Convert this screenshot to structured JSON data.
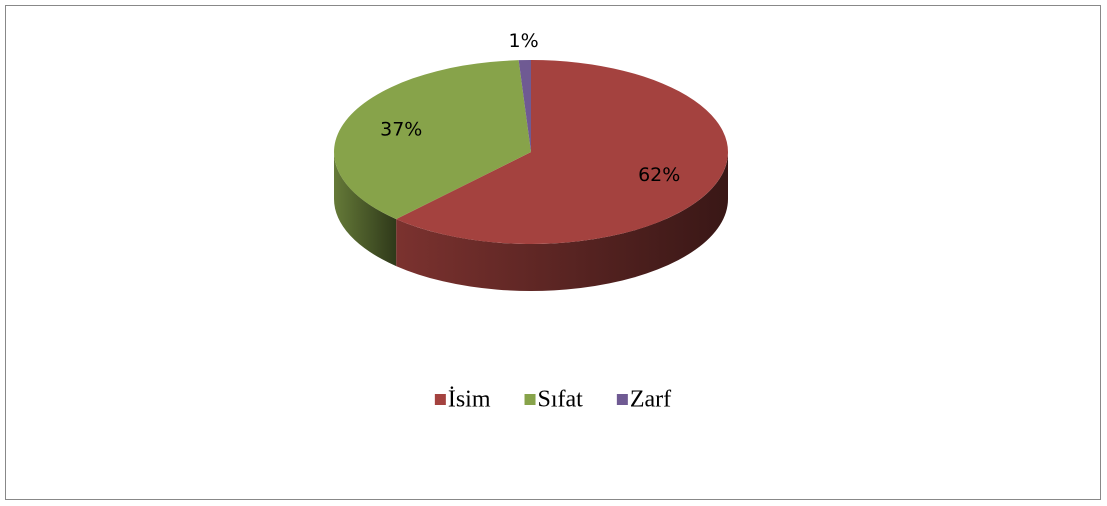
{
  "chart_data": {
    "type": "pie",
    "categories": [
      "İsim",
      "Sıfat",
      "Zarf"
    ],
    "values": [
      62,
      37,
      1
    ],
    "value_labels": [
      "62%",
      "37%",
      "1%"
    ],
    "colors": [
      "#a4423f",
      "#87a34a",
      "#6f5a93"
    ],
    "legend": "bottom"
  }
}
